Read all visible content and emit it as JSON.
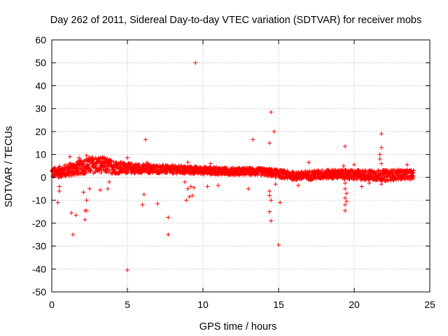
{
  "chart_data": {
    "type": "scatter",
    "title": "Day 262 of 2011, Sidereal Day-to-day VTEC variation (SDTVAR) for receiver mobs",
    "xlabel": "GPS time / hours",
    "ylabel": "SDTVAR / TECUs",
    "xlim": [
      0,
      25
    ],
    "ylim": [
      -50,
      60
    ],
    "xticks": [
      "0",
      "5",
      "10",
      "15",
      "20",
      "25"
    ],
    "yticks": [
      "60",
      "50",
      "40",
      "30",
      "20",
      "10",
      "0",
      "-10",
      "-20",
      "-30",
      "-40",
      "-50"
    ],
    "grid": true,
    "marker": "+",
    "color": "#ff0000",
    "band": [
      [
        0.0,
        2.0,
        2.2
      ],
      [
        0.5,
        2.4,
        2.4
      ],
      [
        1.0,
        3.0,
        2.8
      ],
      [
        1.5,
        3.8,
        3.0
      ],
      [
        2.0,
        4.6,
        3.2
      ],
      [
        2.5,
        5.2,
        3.6
      ],
      [
        3.0,
        5.6,
        3.6
      ],
      [
        3.5,
        5.2,
        3.4
      ],
      [
        4.0,
        4.6,
        3.0
      ],
      [
        4.5,
        4.2,
        2.6
      ],
      [
        5.0,
        4.0,
        2.2
      ],
      [
        6.0,
        3.8,
        2.0
      ],
      [
        7.0,
        3.6,
        1.8
      ],
      [
        8.0,
        3.4,
        1.8
      ],
      [
        9.0,
        3.2,
        1.8
      ],
      [
        10.0,
        3.0,
        1.6
      ],
      [
        11.0,
        2.8,
        1.6
      ],
      [
        12.0,
        2.6,
        1.6
      ],
      [
        13.0,
        2.6,
        1.6
      ],
      [
        14.0,
        2.4,
        1.6
      ],
      [
        15.0,
        1.6,
        1.8
      ],
      [
        16.0,
        0.6,
        1.8
      ],
      [
        17.0,
        0.8,
        2.0
      ],
      [
        18.0,
        1.4,
        2.0
      ],
      [
        19.0,
        1.4,
        2.0
      ],
      [
        20.0,
        1.0,
        2.2
      ],
      [
        21.0,
        1.0,
        2.2
      ],
      [
        22.0,
        0.8,
        2.4
      ],
      [
        23.0,
        1.2,
        2.2
      ],
      [
        23.9,
        1.2,
        2.0
      ]
    ],
    "outliers": [
      [
        9.5,
        50
      ],
      [
        14.5,
        28.5
      ],
      [
        14.7,
        20
      ],
      [
        6.2,
        16.5
      ],
      [
        13.3,
        16.5
      ],
      [
        14.4,
        15
      ],
      [
        19.4,
        13.5
      ],
      [
        21.8,
        19
      ],
      [
        21.8,
        13
      ],
      [
        21.7,
        10
      ],
      [
        21.7,
        8
      ],
      [
        21.8,
        6
      ],
      [
        1.2,
        9
      ],
      [
        1.8,
        8.5
      ],
      [
        2.3,
        9.5
      ],
      [
        5.0,
        8.5
      ],
      [
        6.3,
        6.5
      ],
      [
        9.0,
        6.5
      ],
      [
        10.5,
        6
      ],
      [
        17.0,
        6.5
      ],
      [
        19.3,
        5
      ],
      [
        23.5,
        5.5
      ],
      [
        20.0,
        5.5
      ],
      [
        0.5,
        -4
      ],
      [
        0.5,
        -6
      ],
      [
        0.4,
        -11
      ],
      [
        1.3,
        -15.5
      ],
      [
        1.6,
        -16.5
      ],
      [
        1.4,
        -25
      ],
      [
        2.2,
        -14.5
      ],
      [
        2.3,
        -14.5
      ],
      [
        2.2,
        -18.5
      ],
      [
        2.3,
        -10
      ],
      [
        2.1,
        -6.5
      ],
      [
        2.5,
        -5
      ],
      [
        3.2,
        -5.5
      ],
      [
        3.7,
        -5
      ],
      [
        3.8,
        -2
      ],
      [
        6.0,
        -12
      ],
      [
        6.1,
        -7.5
      ],
      [
        7.0,
        -11.5
      ],
      [
        7.7,
        -17.5
      ],
      [
        7.7,
        -25
      ],
      [
        5.0,
        -40.5
      ],
      [
        8.8,
        -2
      ],
      [
        8.9,
        -10
      ],
      [
        9.0,
        -5
      ],
      [
        9.2,
        -4
      ],
      [
        9.3,
        -8
      ],
      [
        9.1,
        -8.5
      ],
      [
        9.4,
        -4.5
      ],
      [
        10.3,
        -4
      ],
      [
        11.0,
        -3.5
      ],
      [
        13.0,
        -5
      ],
      [
        14.4,
        -6
      ],
      [
        14.4,
        -8
      ],
      [
        14.5,
        -10
      ],
      [
        14.4,
        -15
      ],
      [
        14.5,
        -19
      ],
      [
        14.8,
        -3
      ],
      [
        15.0,
        -29.5
      ],
      [
        15.1,
        -11
      ],
      [
        16.3,
        -3.5
      ],
      [
        19.4,
        -2.5
      ],
      [
        19.4,
        -5
      ],
      [
        19.5,
        -7
      ],
      [
        19.4,
        -9
      ],
      [
        19.5,
        -10.5
      ],
      [
        19.4,
        -12
      ],
      [
        19.4,
        -14.5
      ],
      [
        20.5,
        -4
      ],
      [
        21.0,
        -2.5
      ],
      [
        21.8,
        -3
      ]
    ]
  }
}
